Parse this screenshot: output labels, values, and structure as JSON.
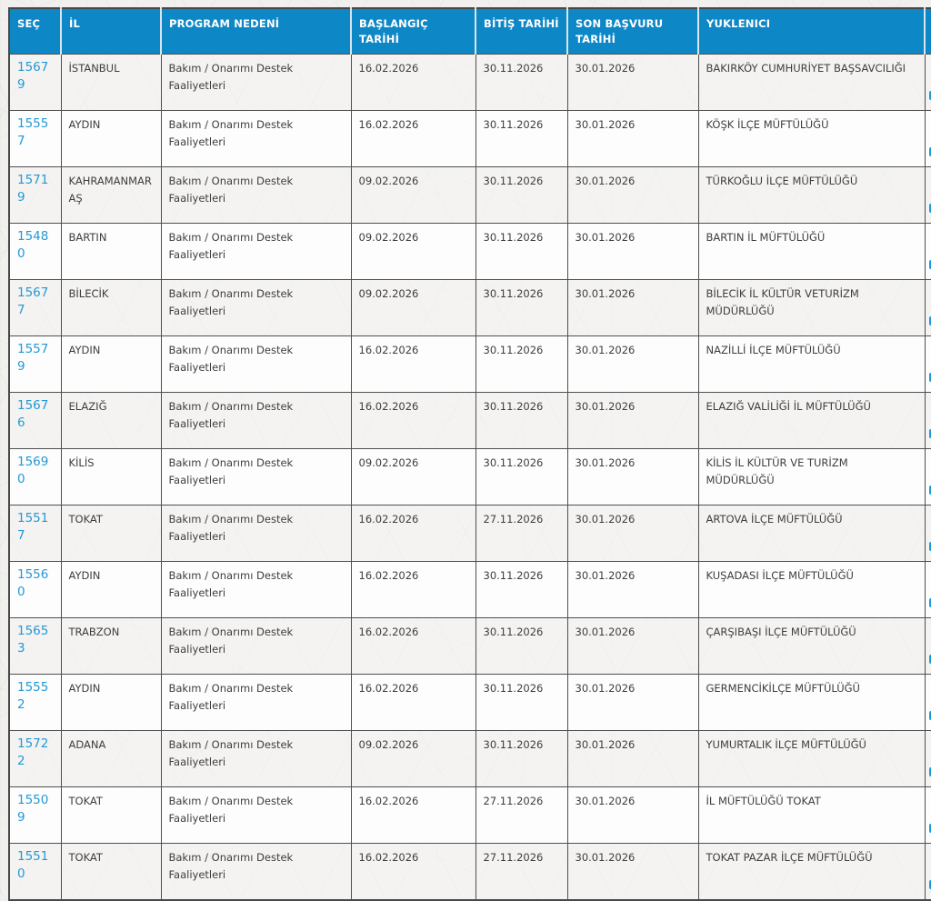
{
  "table": {
    "header_bg": "#0e87c6",
    "link_color": "#2399d6",
    "columns": [
      {
        "key": "sec",
        "label": "SEÇ"
      },
      {
        "key": "il",
        "label": "İL"
      },
      {
        "key": "program",
        "label": "PROGRAM NEDENİ"
      },
      {
        "key": "baslangic",
        "label": "BAŞLANGIÇ TARİHİ"
      },
      {
        "key": "bitis",
        "label": "BİTİŞ TARİHİ"
      },
      {
        "key": "son",
        "label": "SON BAŞVURU TARİHİ"
      },
      {
        "key": "yuklenici",
        "label": "YUKLENICI"
      },
      {
        "key": "partial",
        "label": ""
      }
    ],
    "rows": [
      {
        "sec": "15679",
        "il": "İSTANBUL",
        "program": "Bakım / Onarımı Destek Faaliyetleri",
        "baslangic": "16.02.2026",
        "bitis": "30.11.2026",
        "son": "30.01.2026",
        "yuklenici": "BAKIRKÖY CUMHURİYET BAŞSAVCILIĞI"
      },
      {
        "sec": "15557",
        "il": "AYDIN",
        "program": "Bakım / Onarımı Destek Faaliyetleri",
        "baslangic": "16.02.2026",
        "bitis": "30.11.2026",
        "son": "30.01.2026",
        "yuklenici": "KÖŞK İLÇE MÜFTÜLÜĞÜ"
      },
      {
        "sec": "15719",
        "il": "KAHRAMANMARAŞ",
        "program": "Bakım / Onarımı Destek Faaliyetleri",
        "baslangic": "09.02.2026",
        "bitis": "30.11.2026",
        "son": "30.01.2026",
        "yuklenici": "TÜRKOĞLU İLÇE MÜFTÜLÜĞÜ"
      },
      {
        "sec": "15480",
        "il": "BARTIN",
        "program": "Bakım / Onarımı Destek Faaliyetleri",
        "baslangic": "09.02.2026",
        "bitis": "30.11.2026",
        "son": "30.01.2026",
        "yuklenici": "BARTIN İL MÜFTÜLÜĞÜ"
      },
      {
        "sec": "15677",
        "il": "BİLECİK",
        "program": "Bakım / Onarımı Destek Faaliyetleri",
        "baslangic": "09.02.2026",
        "bitis": "30.11.2026",
        "son": "30.01.2026",
        "yuklenici": "BİLECİK İL KÜLTÜR VETURİZM MÜDÜRLÜĞÜ"
      },
      {
        "sec": "15579",
        "il": "AYDIN",
        "program": "Bakım / Onarımı Destek Faaliyetleri",
        "baslangic": "16.02.2026",
        "bitis": "30.11.2026",
        "son": "30.01.2026",
        "yuklenici": "NAZİLLİ İLÇE MÜFTÜLÜĞÜ"
      },
      {
        "sec": "15676",
        "il": "ELAZIĞ",
        "program": "Bakım / Onarımı Destek Faaliyetleri",
        "baslangic": "16.02.2026",
        "bitis": "30.11.2026",
        "son": "30.01.2026",
        "yuklenici": "ELAZIĞ VALİLİĞİ İL MÜFTÜLÜĞÜ"
      },
      {
        "sec": "15690",
        "il": "KİLİS",
        "program": "Bakım / Onarımı Destek Faaliyetleri",
        "baslangic": "09.02.2026",
        "bitis": "30.11.2026",
        "son": "30.01.2026",
        "yuklenici": "KİLİS İL KÜLTÜR VE TURİZM MÜDÜRLÜĞÜ"
      },
      {
        "sec": "15517",
        "il": "TOKAT",
        "program": "Bakım / Onarımı Destek Faaliyetleri",
        "baslangic": "16.02.2026",
        "bitis": "27.11.2026",
        "son": "30.01.2026",
        "yuklenici": "ARTOVA İLÇE MÜFTÜLÜĞÜ"
      },
      {
        "sec": "15560",
        "il": "AYDIN",
        "program": "Bakım / Onarımı Destek Faaliyetleri",
        "baslangic": "16.02.2026",
        "bitis": "30.11.2026",
        "son": "30.01.2026",
        "yuklenici": "KUŞADASI İLÇE MÜFTÜLÜĞÜ"
      },
      {
        "sec": "15653",
        "il": "TRABZON",
        "program": "Bakım / Onarımı Destek Faaliyetleri",
        "baslangic": "16.02.2026",
        "bitis": "30.11.2026",
        "son": "30.01.2026",
        "yuklenici": "ÇARŞIBAŞI İLÇE MÜFTÜLÜĞÜ"
      },
      {
        "sec": "15552",
        "il": "AYDIN",
        "program": "Bakım / Onarımı Destek Faaliyetleri",
        "baslangic": "16.02.2026",
        "bitis": "30.11.2026",
        "son": "30.01.2026",
        "yuklenici": "GERMENCİKİLÇE MÜFTÜLÜĞÜ"
      },
      {
        "sec": "15722",
        "il": "ADANA",
        "program": "Bakım / Onarımı Destek Faaliyetleri",
        "baslangic": "09.02.2026",
        "bitis": "30.11.2026",
        "son": "30.01.2026",
        "yuklenici": "YUMURTALIK İLÇE MÜFTÜLÜĞÜ"
      },
      {
        "sec": "15509",
        "il": "TOKAT",
        "program": "Bakım / Onarımı Destek Faaliyetleri",
        "baslangic": "16.02.2026",
        "bitis": "27.11.2026",
        "son": "30.01.2026",
        "yuklenici": "İL MÜFTÜLÜĞÜ TOKAT"
      },
      {
        "sec": "15510",
        "il": "TOKAT",
        "program": "Bakım / Onarımı Destek Faaliyetleri",
        "baslangic": "16.02.2026",
        "bitis": "27.11.2026",
        "son": "30.01.2026",
        "yuklenici": "TOKAT PAZAR İLÇE MÜFTÜLÜĞÜ"
      }
    ]
  }
}
